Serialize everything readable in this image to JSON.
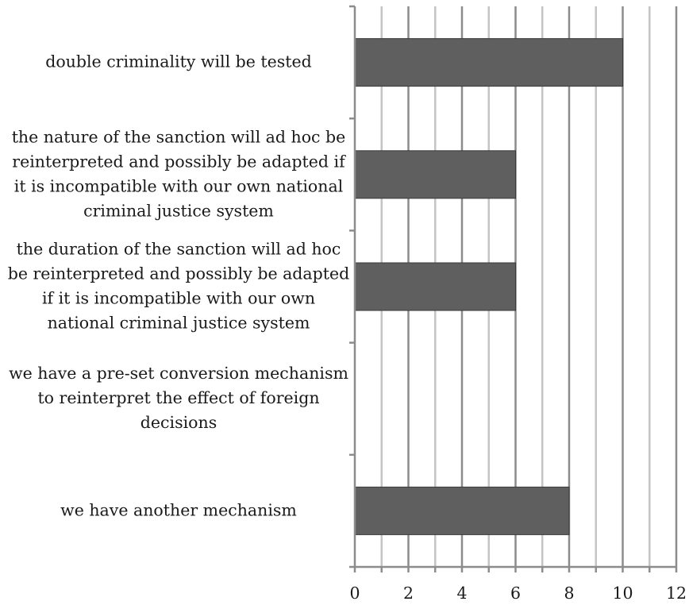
{
  "chart_data": {
    "type": "bar",
    "orientation": "horizontal",
    "categories": [
      "double criminality will be tested",
      "the nature of the sanction will ad hoc be reinterpreted and possibly be adapted if it is incompatible with our own national criminal justice system",
      "the duration of the sanction will ad hoc be reinterpreted and possibly be adapted if it is incompatible with our own national criminal justice system",
      "we have a pre-set conversion mechanism to reinterpret the effect of foreign decisions",
      "we have another mechanism"
    ],
    "category_lines": [
      [
        "double criminality will be tested"
      ],
      [
        "the nature of the sanction will ad hoc be",
        "reinterpreted and possibly be adapted if",
        "it is incompatible with our own national",
        "criminal justice system"
      ],
      [
        "the duration of the sanction will ad hoc",
        "be reinterpreted and possibly be adapted",
        "if it is incompatible with our own",
        "national criminal justice system"
      ],
      [
        "we have a pre-set conversion mechanism",
        "to reinterpret the effect of foreign",
        "decisions"
      ],
      [
        "we have another mechanism"
      ]
    ],
    "values": [
      10,
      6,
      6,
      0,
      8
    ],
    "xlim": [
      0,
      12
    ],
    "xticks": [
      "0",
      "2",
      "4",
      "6",
      "8",
      "10",
      "12"
    ],
    "title": "",
    "xlabel": "",
    "ylabel": "",
    "grid": true,
    "legend": "none",
    "colors": {
      "bar": "#5f5f5f",
      "bar_edge": "#3a3a3a",
      "major_grid": "#8c8c8c",
      "minor_grid": "#c4c4c4",
      "axis": "#8c8c8c",
      "text": "#1a1a1a"
    }
  }
}
